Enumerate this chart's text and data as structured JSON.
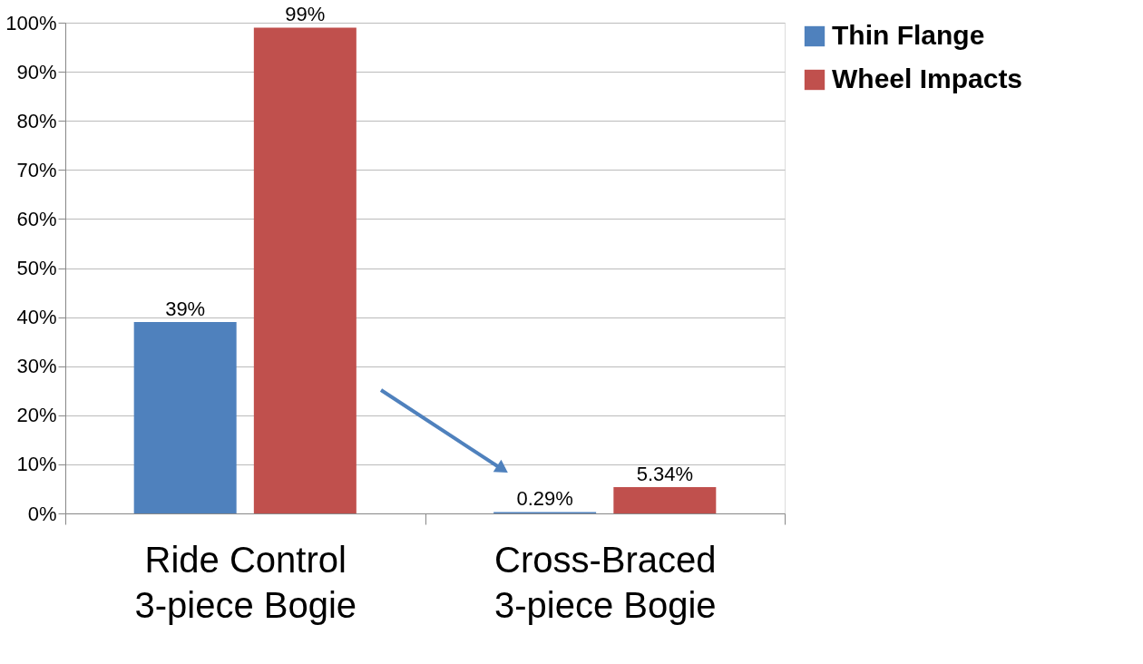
{
  "chart_data": {
    "type": "bar",
    "categories": [
      "Ride Control 3-piece Bogie",
      "Cross-Braced 3-piece Bogie"
    ],
    "series": [
      {
        "name": "Thin Flange",
        "color": "#4f81bd",
        "values": [
          39,
          0.29
        ],
        "value_labels": [
          "39%",
          "0.29%"
        ]
      },
      {
        "name": "Wheel Impacts",
        "color": "#c0504d",
        "values": [
          99,
          5.34
        ],
        "value_labels": [
          "99%",
          "5.34%"
        ]
      }
    ],
    "ylim": [
      0,
      100
    ],
    "yticks": [
      {
        "value": 0,
        "label": "0%"
      },
      {
        "value": 10,
        "label": "10%"
      },
      {
        "value": 20,
        "label": "20%"
      },
      {
        "value": 30,
        "label": "30%"
      },
      {
        "value": 40,
        "label": "40%"
      },
      {
        "value": 50,
        "label": "50%"
      },
      {
        "value": 60,
        "label": "60%"
      },
      {
        "value": 70,
        "label": "70%"
      },
      {
        "value": 80,
        "label": "80%"
      },
      {
        "value": 90,
        "label": "90%"
      },
      {
        "value": 100,
        "label": "100%"
      }
    ],
    "grid": "y",
    "legend": "right"
  }
}
